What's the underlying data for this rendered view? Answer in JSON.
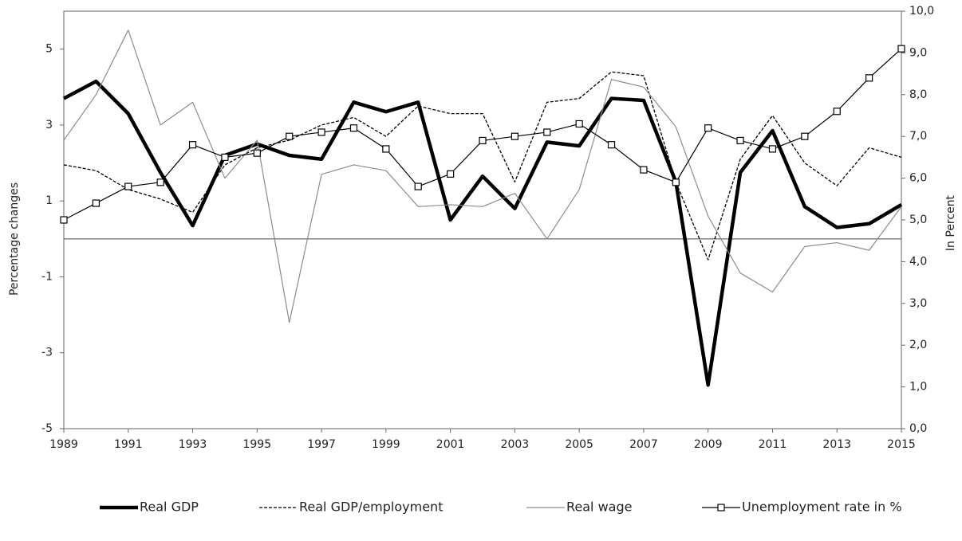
{
  "chart_data": {
    "type": "line",
    "x": [
      1989,
      1990,
      1991,
      1992,
      1993,
      1994,
      1995,
      1996,
      1997,
      1998,
      1999,
      2000,
      2001,
      2002,
      2003,
      2004,
      2005,
      2006,
      2007,
      2008,
      2009,
      2010,
      2011,
      2012,
      2013,
      2014,
      2015
    ],
    "xlim": [
      1989,
      2015
    ],
    "xticks": [
      1989,
      1991,
      1993,
      1995,
      1997,
      1999,
      2001,
      2003,
      2005,
      2007,
      2009,
      2011,
      2013,
      2015
    ],
    "ylim": [
      -5,
      6
    ],
    "yticks": [
      -5,
      -3,
      -1,
      1,
      3,
      5
    ],
    "y2lim": [
      0,
      10
    ],
    "y2ticks": [
      {
        "value": 0,
        "label": "0,0"
      },
      {
        "value": 1,
        "label": "1,0"
      },
      {
        "value": 2,
        "label": "2,0"
      },
      {
        "value": 3,
        "label": "3,0"
      },
      {
        "value": 4,
        "label": "4,0"
      },
      {
        "value": 5,
        "label": "5,0"
      },
      {
        "value": 6,
        "label": "6,0"
      },
      {
        "value": 7,
        "label": "7,0"
      },
      {
        "value": 8,
        "label": "8,0"
      },
      {
        "value": 9,
        "label": "9,0"
      },
      {
        "value": 10,
        "label": "10,0"
      }
    ],
    "ylabel": "Percentage changes",
    "y2label": "In Percent",
    "legend": "bottom",
    "series": [
      {
        "name": "Real GDP",
        "color": "#000000",
        "style": "thick",
        "values": [
          3.7,
          4.15,
          3.3,
          1.75,
          0.35,
          2.2,
          2.5,
          2.2,
          2.1,
          3.6,
          3.35,
          3.6,
          0.5,
          1.65,
          0.8,
          2.55,
          2.45,
          3.7,
          3.65,
          1.5,
          -3.85,
          1.75,
          2.85,
          0.85,
          0.3,
          0.4,
          0.9
        ]
      },
      {
        "name": "Real GDP/employment",
        "color": "#000000",
        "style": "dashed",
        "values": [
          1.95,
          1.8,
          1.3,
          1.05,
          0.7,
          1.95,
          2.4,
          2.6,
          3.0,
          3.2,
          2.7,
          3.5,
          3.3,
          3.3,
          1.5,
          3.6,
          3.7,
          4.4,
          4.3,
          1.5,
          -0.55,
          2.1,
          3.25,
          2.0,
          1.4,
          2.4,
          2.15
        ]
      },
      {
        "name": "Real wage",
        "color": "#8c8c8c",
        "style": "thin",
        "values": [
          2.6,
          3.8,
          5.5,
          3.0,
          3.6,
          1.6,
          2.6,
          -2.2,
          1.7,
          1.95,
          1.8,
          0.85,
          0.9,
          0.85,
          1.2,
          0.0,
          1.3,
          4.2,
          4.0,
          2.95,
          0.6,
          -0.9,
          -1.4,
          -0.2,
          -0.1,
          -0.3,
          0.85
        ]
      },
      {
        "name": "Unemployment rate in %",
        "color": "#000000",
        "style": "markers",
        "axis": "y2",
        "values": [
          5.0,
          5.4,
          5.8,
          5.9,
          6.8,
          6.5,
          6.6,
          7.0,
          7.1,
          7.2,
          6.7,
          5.8,
          6.1,
          6.9,
          7.0,
          7.1,
          7.3,
          6.8,
          6.2,
          5.9,
          7.2,
          6.9,
          6.7,
          7.0,
          7.6,
          8.4,
          9.1
        ]
      }
    ]
  }
}
